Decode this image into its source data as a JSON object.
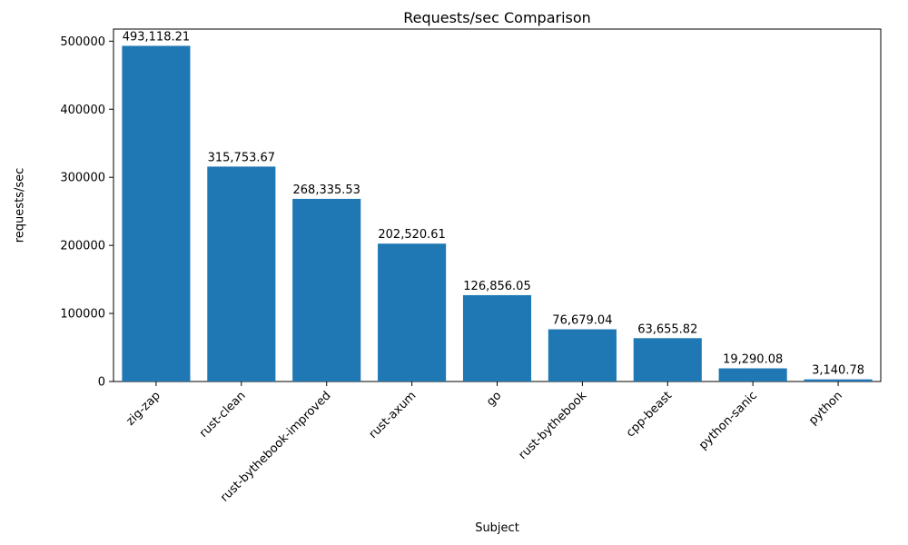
{
  "chart_data": {
    "type": "bar",
    "title": "Requests/sec Comparison",
    "xlabel": "Subject",
    "ylabel": "requests/sec",
    "categories": [
      "zig-zap",
      "rust-clean",
      "rust-bythebook-improved",
      "rust-axum",
      "go",
      "rust-bythebook",
      "cpp-beast",
      "python-sanic",
      "python"
    ],
    "values": [
      493118.21,
      315753.67,
      268335.53,
      202520.61,
      126856.05,
      76679.04,
      63655.82,
      19290.08,
      3140.78
    ],
    "value_labels": [
      "493,118.21",
      "315,753.67",
      "268,335.53",
      "202,520.61",
      "126,856.05",
      "76,679.04",
      "63,655.82",
      "19,290.08",
      "3,140.78"
    ],
    "yticks": [
      0,
      100000,
      200000,
      300000,
      400000,
      500000
    ],
    "ytick_labels": [
      "0",
      "100000",
      "200000",
      "300000",
      "400000",
      "500000"
    ],
    "ylim": [
      0,
      517774
    ],
    "bar_color": "#1f77b4",
    "axis_color": "#000000",
    "background_color": "#ffffff",
    "grid": false,
    "legend_position": "none"
  }
}
